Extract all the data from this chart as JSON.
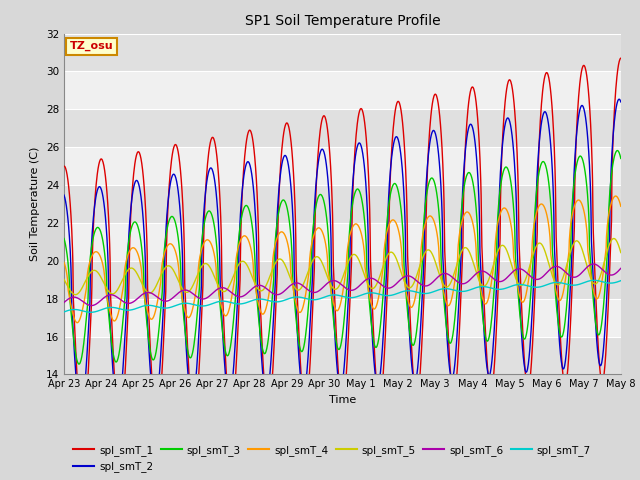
{
  "title": "SP1 Soil Temperature Profile",
  "xlabel": "Time",
  "ylabel": "Soil Temperature (C)",
  "ylim": [
    14,
    32
  ],
  "yticks": [
    14,
    16,
    18,
    20,
    22,
    24,
    26,
    28,
    30,
    32
  ],
  "annotation_text": "TZ_osu",
  "annotation_color": "#cc0000",
  "annotation_bg": "#ffffcc",
  "annotation_border": "#cc8800",
  "series_colors": {
    "spl_smT_1": "#dd0000",
    "spl_smT_2": "#0000cc",
    "spl_smT_3": "#00cc00",
    "spl_smT_4": "#ff9900",
    "spl_smT_5": "#cccc00",
    "spl_smT_6": "#aa00aa",
    "spl_smT_7": "#00cccc"
  },
  "fig_bg_color": "#d8d8d8",
  "plot_bg_light": "#f0f0f0",
  "plot_bg_dark": "#e0e0e0",
  "n_days": 15,
  "xtick_labels": [
    "Apr 23",
    "Apr 24",
    "Apr 25",
    "Apr 26",
    "Apr 27",
    "Apr 28",
    "Apr 29",
    "Apr 30",
    "May 1",
    "May 2",
    "May 3",
    "May 4",
    "May 5",
    "May 6",
    "May 7",
    "May 8"
  ]
}
